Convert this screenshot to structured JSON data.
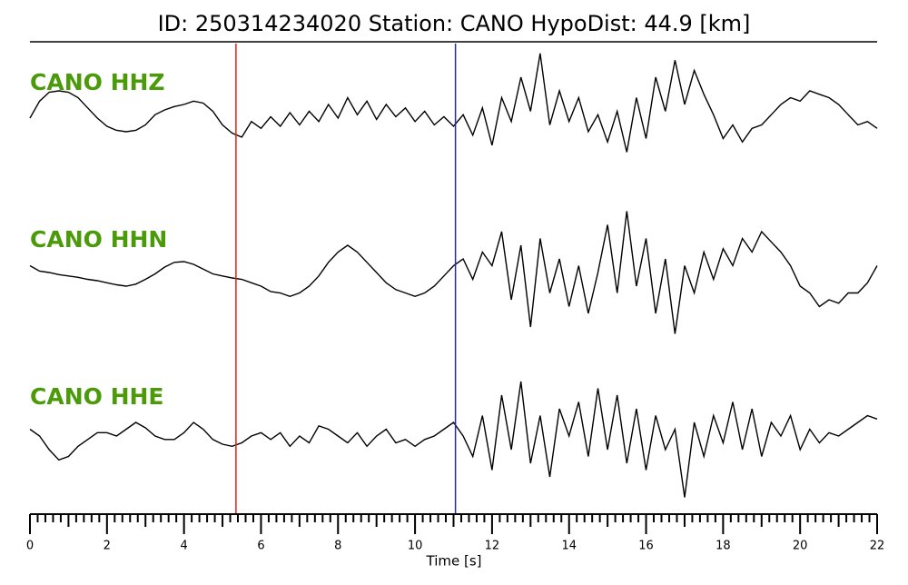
{
  "chart_data": {
    "type": "seismogram",
    "title": "ID: 250314234020   Station: CANO   HypoDist:    44.9 [km]",
    "xlabel": "Time [s]",
    "xlim": [
      0,
      22
    ],
    "xticks": [
      0,
      2,
      4,
      6,
      8,
      10,
      12,
      14,
      16,
      18,
      20,
      22
    ],
    "xticks_minor": [
      0.2,
      0.4,
      0.6,
      0.8,
      1,
      1.2,
      1.4,
      1.6,
      1.8,
      2.2,
      2.4,
      2.6,
      2.8,
      3,
      3.2,
      3.4,
      3.6,
      3.8,
      4.2,
      4.4,
      4.6,
      4.8,
      5,
      5.2,
      5.4,
      5.6,
      5.8,
      6.2,
      6.4,
      6.6,
      6.8,
      7,
      7.2,
      7.4,
      7.6,
      7.8,
      8.2,
      8.4,
      8.6,
      8.8,
      9,
      9.2,
      9.4,
      9.6,
      9.8,
      10.2,
      10.4,
      10.6,
      10.8,
      11,
      11.2,
      11.4,
      11.6,
      11.8,
      12.2,
      12.4,
      12.6,
      12.8,
      13,
      13.2,
      13.4,
      13.6,
      13.8,
      14.2,
      14.4,
      14.6,
      14.8,
      15,
      15.2,
      15.4,
      15.6,
      15.8,
      16.2,
      16.4,
      16.6,
      16.8,
      17,
      17.2,
      17.4,
      17.6,
      17.8,
      18.2,
      18.4,
      18.6,
      18.8,
      19,
      19.2,
      19.4,
      19.6,
      19.8,
      20.2,
      20.4,
      20.6,
      20.8,
      21,
      21.2,
      21.4,
      21.6,
      21.8
    ],
    "ylim": [
      -1,
      1
    ],
    "picks": [
      {
        "time": 5.35,
        "color": "#e8201a"
      },
      {
        "time": 11.05,
        "color": "#2a2ab0"
      }
    ],
    "x": [
      0,
      0.25,
      0.5,
      0.75,
      1,
      1.25,
      1.5,
      1.75,
      2,
      2.25,
      2.5,
      2.75,
      3,
      3.25,
      3.5,
      3.75,
      4,
      4.25,
      4.5,
      4.75,
      5,
      5.25,
      5.5,
      5.75,
      6,
      6.25,
      6.5,
      6.75,
      7,
      7.25,
      7.5,
      7.75,
      8,
      8.25,
      8.5,
      8.75,
      9,
      9.25,
      9.5,
      9.75,
      10,
      10.25,
      10.5,
      10.75,
      11,
      11.25,
      11.5,
      11.75,
      12,
      12.25,
      12.5,
      12.75,
      13,
      13.25,
      13.5,
      13.75,
      14,
      14.25,
      14.5,
      14.75,
      15,
      15.25,
      15.5,
      15.75,
      16,
      16.25,
      16.5,
      16.75,
      17,
      17.25,
      17.5,
      17.75,
      18,
      18.25,
      18.5,
      18.75,
      19,
      19.25,
      19.5,
      19.75,
      20,
      20.25,
      20.5,
      20.75,
      21,
      21.25,
      21.5,
      21.75,
      22
    ],
    "series": [
      {
        "name": "CANO HHZ",
        "color": "#000000",
        "values": [
          0,
          0.25,
          0.38,
          0.4,
          0.38,
          0.3,
          0.15,
          0,
          -0.12,
          -0.18,
          -0.2,
          -0.18,
          -0.1,
          0.05,
          0.12,
          0.17,
          0.2,
          0.25,
          0.22,
          0.1,
          -0.1,
          -0.22,
          -0.28,
          -0.05,
          -0.15,
          0.02,
          -0.12,
          0.08,
          -0.1,
          0.1,
          -0.05,
          0.2,
          0,
          0.3,
          0.05,
          0.25,
          -0.02,
          0.2,
          0.02,
          0.15,
          -0.05,
          0.1,
          -0.1,
          0.02,
          -0.12,
          0.05,
          -0.25,
          0.15,
          -0.4,
          0.3,
          -0.05,
          0.6,
          0.1,
          0.95,
          -0.1,
          0.4,
          -0.05,
          0.3,
          -0.2,
          0.05,
          -0.35,
          0.1,
          -0.5,
          0.3,
          -0.3,
          0.6,
          0.1,
          0.85,
          0.2,
          0.7,
          0.35,
          0.05,
          -0.3,
          -0.1,
          -0.35,
          -0.15,
          -0.1,
          0.05,
          0.2,
          0.3,
          0.25,
          0.4,
          0.35,
          0.3,
          0.2,
          0.05,
          -0.1,
          -0.05,
          -0.15
        ]
      },
      {
        "name": "CANO HHN",
        "color": "#000000",
        "values": [
          0.1,
          0.02,
          0,
          -0.03,
          -0.05,
          -0.07,
          -0.1,
          -0.12,
          -0.15,
          -0.18,
          -0.2,
          -0.17,
          -0.1,
          -0.02,
          0.08,
          0.15,
          0.16,
          0.12,
          0.05,
          -0.02,
          -0.05,
          -0.08,
          -0.1,
          -0.15,
          -0.2,
          -0.28,
          -0.3,
          -0.35,
          -0.3,
          -0.2,
          -0.05,
          0.15,
          0.3,
          0.4,
          0.3,
          0.15,
          0,
          -0.15,
          -0.25,
          -0.3,
          -0.35,
          -0.3,
          -0.2,
          -0.05,
          0.1,
          0.2,
          -0.1,
          0.3,
          0.1,
          0.6,
          -0.4,
          0.4,
          -0.8,
          0.5,
          -0.3,
          0.2,
          -0.5,
          0.1,
          -0.6,
          0,
          0.7,
          -0.3,
          0.9,
          -0.2,
          0.5,
          -0.6,
          0.2,
          -0.9,
          0.1,
          -0.3,
          0.3,
          -0.1,
          0.35,
          0.1,
          0.5,
          0.3,
          0.6,
          0.45,
          0.3,
          0.1,
          -0.2,
          -0.3,
          -0.5,
          -0.4,
          -0.45,
          -0.3,
          -0.3,
          -0.15,
          0.1
        ]
      },
      {
        "name": "CANO HHE",
        "color": "#000000",
        "values": [
          0.1,
          0,
          -0.2,
          -0.35,
          -0.3,
          -0.15,
          -0.05,
          0.05,
          0.05,
          0,
          0.1,
          0.2,
          0.12,
          0,
          -0.05,
          -0.05,
          0.05,
          0.2,
          0.1,
          -0.05,
          -0.12,
          -0.15,
          -0.1,
          0,
          0.05,
          -0.05,
          0.05,
          -0.15,
          0,
          -0.1,
          0.15,
          0.1,
          0,
          -0.1,
          0.05,
          -0.15,
          0,
          0.1,
          -0.1,
          -0.05,
          -0.15,
          -0.05,
          0,
          0.1,
          0.2,
          0,
          -0.3,
          0.3,
          -0.5,
          0.6,
          -0.2,
          0.8,
          -0.4,
          0.3,
          -0.6,
          0.4,
          0,
          0.5,
          -0.3,
          0.7,
          -0.2,
          0.6,
          -0.4,
          0.4,
          -0.5,
          0.3,
          -0.2,
          0.1,
          -0.9,
          0.2,
          -0.3,
          0.3,
          -0.1,
          0.5,
          -0.2,
          0.4,
          -0.3,
          0.2,
          0,
          0.3,
          -0.2,
          0.1,
          -0.1,
          0.05,
          0,
          0.1,
          0.2,
          0.3,
          0.25
        ]
      }
    ]
  }
}
